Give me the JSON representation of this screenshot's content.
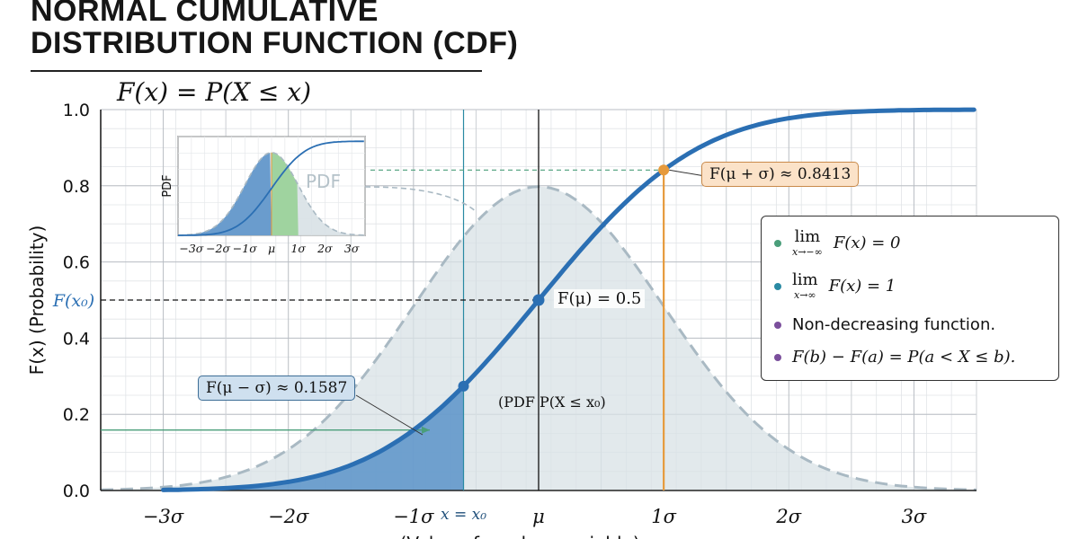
{
  "header": {
    "title_line1": "NORMAL CUMULATIVE",
    "title_line2": "DISTRIBUTION FUNCTION (CDF)",
    "formula": "F(x) = P(X ≤ x)"
  },
  "chart_data": {
    "type": "line",
    "title": "NORMAL CUMULATIVE DISTRIBUTION FUNCTION (CDF)",
    "subtitle": "F(x) = P(X ≤ x)",
    "ylabel": "F(x) (Probability)",
    "xlabel": "x (Value of random variable)",
    "xlim": [
      -3.5,
      3.5
    ],
    "ylim": [
      0.0,
      1.0
    ],
    "grid": true,
    "x_tick_values": [
      -3,
      -2,
      -1,
      0,
      1,
      2,
      3
    ],
    "x_tick_labels": [
      "−3σ",
      "−2σ",
      "−1σ",
      "μ",
      "1σ",
      "2σ",
      "3σ"
    ],
    "y_tick_values": [
      0.0,
      0.2,
      0.4,
      0.6,
      0.8,
      1.0
    ],
    "y_tick_labels": [
      "0.0",
      "0.2",
      "0.4",
      "0.6",
      "0.8",
      "1.0"
    ],
    "series": [
      {
        "name": "CDF",
        "color": "#2b6fb3",
        "x": [
          -3,
          -2.5,
          -2,
          -1.5,
          -1,
          -0.5,
          0,
          0.5,
          1,
          1.5,
          2,
          2.5,
          3,
          3.5
        ],
        "y": [
          0.0013,
          0.0062,
          0.0228,
          0.0668,
          0.1587,
          0.3085,
          0.5,
          0.6915,
          0.8413,
          0.9332,
          0.9772,
          0.9938,
          0.9987,
          0.9998
        ]
      },
      {
        "name": "PDF",
        "color": "#a9b9c3",
        "style": "dashed",
        "x": [
          -3,
          -2.5,
          -2,
          -1.5,
          -1,
          -0.5,
          0,
          0.5,
          1,
          1.5,
          2,
          2.5,
          3,
          3.5
        ],
        "y": [
          0.0089,
          0.035,
          0.108,
          0.259,
          0.4839,
          0.7041,
          0.7979,
          0.7041,
          0.4839,
          0.259,
          0.108,
          0.035,
          0.0089,
          0.0017
        ]
      }
    ],
    "marked_points": [
      {
        "x": -0.6,
        "y": 0.274,
        "label": "x = x₀"
      },
      {
        "x": 0,
        "y": 0.5,
        "label": "F(μ) = 0.5"
      },
      {
        "x": 1,
        "y": 0.8413,
        "label": "F(μ + σ) ≈ 0.8413"
      }
    ],
    "annotations": {
      "f_x0_label": "F(x₀)",
      "x0_label": "x = x₀",
      "f_mu": "F(μ) = 0.5",
      "f_mu_plus": "F(μ + σ) ≈ 0.8413",
      "f_mu_minus": "F(μ − σ) ≈ 0.1587",
      "pdf_area": "(PDF P(X ≤ x₀)",
      "f_mu_minus_y": 0.1587
    },
    "inset": {
      "ylabel": "PDF",
      "label": "PDF",
      "x_tick_labels": [
        "−3σ",
        "−2σ",
        "−1σ",
        "μ",
        "1σ",
        "2σ",
        "3σ"
      ]
    }
  },
  "legend": {
    "items": [
      {
        "color": "#4a9e7a",
        "kind": "lim",
        "lim_sub": "x→−∞",
        "tail": "F(x) = 0"
      },
      {
        "color": "#2a8aa3",
        "kind": "lim",
        "lim_sub": "x→∞",
        "tail": "F(x) = 1"
      },
      {
        "color": "#7b4f9c",
        "kind": "text",
        "text": "Non-decreasing function."
      },
      {
        "color": "#7b4f9c",
        "kind": "text",
        "text": "F(b) − F(a) = P(a < X ≤ b)."
      }
    ],
    "lim_word": "lim"
  },
  "colors": {
    "cdf": "#2b6fb3",
    "pdf_fill": "#d8e1e6",
    "orange": "#e69a3c",
    "teal": "#2a8aa3",
    "green": "#4a9e7a"
  }
}
